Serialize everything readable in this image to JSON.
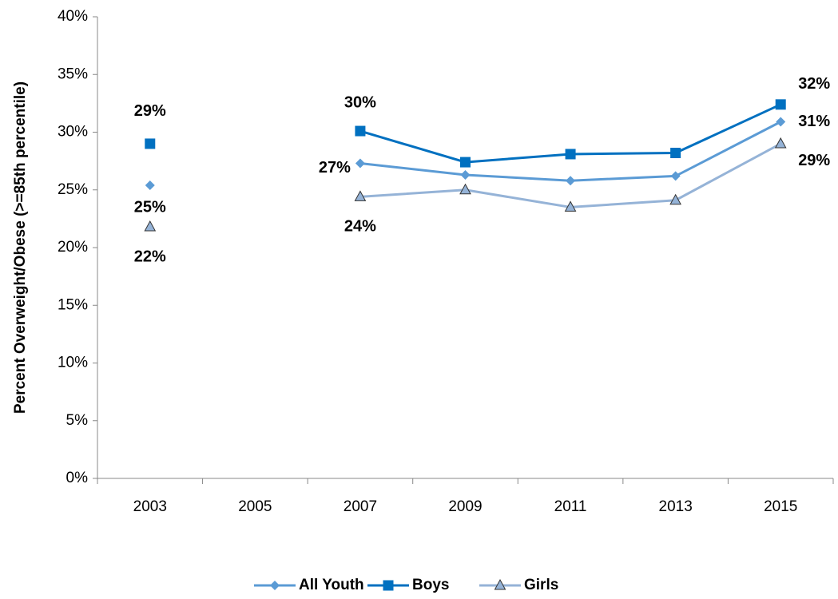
{
  "chart_data": {
    "type": "line",
    "y_label": "Percent Overweight/Obese (>=85th percentile)",
    "categories": [
      "2003",
      "2005",
      "2007",
      "2009",
      "2011",
      "2013",
      "2015"
    ],
    "ylim": [
      0,
      40
    ],
    "yticks": [
      {
        "value": 0,
        "label": "0%"
      },
      {
        "value": 5,
        "label": "5%"
      },
      {
        "value": 10,
        "label": "10%"
      },
      {
        "value": 15,
        "label": "15%"
      },
      {
        "value": 20,
        "label": "20%"
      },
      {
        "value": 25,
        "label": "25%"
      },
      {
        "value": 30,
        "label": "30%"
      },
      {
        "value": 35,
        "label": "35%"
      },
      {
        "value": 40,
        "label": "40%"
      }
    ],
    "legend": "bottom",
    "series": [
      {
        "name": "All Youth",
        "color": "#5b9bd5",
        "marker": "diamond",
        "values": [
          25.4,
          null,
          27.3,
          26.3,
          25.8,
          26.2,
          30.9
        ],
        "value_labels": [
          "25%",
          null,
          "27%",
          null,
          null,
          null,
          "31%"
        ]
      },
      {
        "name": "Boys",
        "color": "#0070c0",
        "marker": "square",
        "values": [
          29.0,
          null,
          30.1,
          27.4,
          28.1,
          28.2,
          32.4
        ],
        "value_labels": [
          "29%",
          null,
          "30%",
          null,
          null,
          null,
          "32%"
        ]
      },
      {
        "name": "Girls",
        "color": "#95b3d7",
        "marker": "triangle",
        "values": [
          21.8,
          null,
          24.4,
          25.0,
          23.5,
          24.1,
          29.0
        ],
        "value_labels": [
          "22%",
          null,
          "24%",
          null,
          null,
          null,
          "29%"
        ]
      }
    ]
  }
}
